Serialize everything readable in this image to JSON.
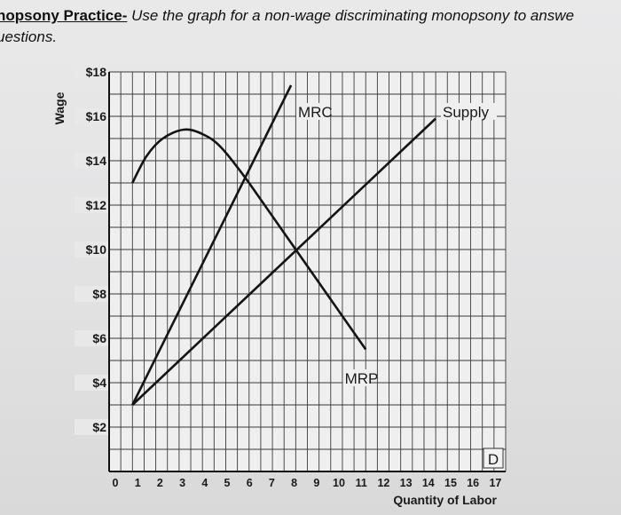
{
  "header": {
    "lead": "nopsony Practice-",
    "rest": " Use the graph for a non-wage discriminating monopsony to answe",
    "line2": "uestions."
  },
  "chart_data": {
    "type": "line",
    "xlabel": "Quantity of Labor",
    "ylabel": "Wage",
    "xlim": [
      0,
      17
    ],
    "ylim": [
      0,
      18
    ],
    "x_ticks": [
      "0",
      "1",
      "2",
      "3",
      "4",
      "5",
      "6",
      "7",
      "8",
      "9",
      "10",
      "11",
      "12",
      "13",
      "14",
      "15",
      "16",
      "17"
    ],
    "y_ticks": [
      {
        "value": 18,
        "label": "$18"
      },
      {
        "value": 16,
        "label": "$16"
      },
      {
        "value": 14,
        "label": "$14"
      },
      {
        "value": 12,
        "label": "$12"
      },
      {
        "value": 10,
        "label": "$10"
      },
      {
        "value": 8,
        "label": "$8"
      },
      {
        "value": 6,
        "label": "$6"
      },
      {
        "value": 4,
        "label": "$4"
      },
      {
        "value": 2,
        "label": "$2"
      }
    ],
    "grid": true,
    "corner_label": "D",
    "series": [
      {
        "name": "MRC",
        "points": [
          [
            1,
            3
          ],
          [
            7.8,
            17.4
          ]
        ]
      },
      {
        "name": "Supply",
        "points": [
          [
            1,
            3
          ],
          [
            14,
            15.9
          ]
        ]
      },
      {
        "name": "MRP",
        "points": [
          [
            1,
            13
          ],
          [
            1.6,
            14.2
          ],
          [
            2.3,
            15.0
          ],
          [
            3.2,
            15.4
          ],
          [
            4.0,
            15.2
          ],
          [
            4.8,
            14.6
          ],
          [
            6,
            13
          ],
          [
            8,
            10
          ],
          [
            11,
            5.5
          ]
        ]
      }
    ],
    "annotations": [
      {
        "text": "MRC",
        "series": "MRC"
      },
      {
        "text": "Supply",
        "series": "Supply"
      },
      {
        "text": "MRP",
        "series": "MRP"
      }
    ]
  }
}
